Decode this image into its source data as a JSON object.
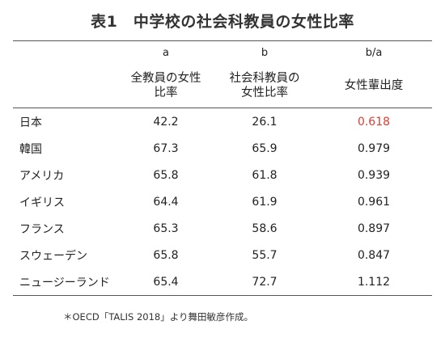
{
  "title": "表1　中学校の社会科教員の女性比率",
  "columns": {
    "letters": [
      "",
      "a",
      "b",
      "b/a"
    ],
    "heading_a_line1": "全教員の女性",
    "heading_a_line2": "比率",
    "heading_b_line1": "社会科教員の",
    "heading_b_line2": "女性比率",
    "heading_r": "女性輩出度"
  },
  "rows": [
    {
      "country": "日本",
      "a": "42.2",
      "b": "26.1",
      "ratio": "0.618"
    },
    {
      "country": "韓国",
      "a": "67.3",
      "b": "65.9",
      "ratio": "0.979"
    },
    {
      "country": "アメリカ",
      "a": "65.8",
      "b": "61.8",
      "ratio": "0.939"
    },
    {
      "country": "イギリス",
      "a": "64.4",
      "b": "61.9",
      "ratio": "0.961"
    },
    {
      "country": "フランス",
      "a": "65.3",
      "b": "58.6",
      "ratio": "0.897"
    },
    {
      "country": "スウェーデン",
      "a": "65.8",
      "b": "55.7",
      "ratio": "0.847"
    },
    {
      "country": "ニュージーランド",
      "a": "65.4",
      "b": "72.7",
      "ratio": "1.112"
    }
  ],
  "highlight_color": "#e03c31",
  "footnote": "＊OECD「TALIS 2018」より舞田敏彦作成。"
}
